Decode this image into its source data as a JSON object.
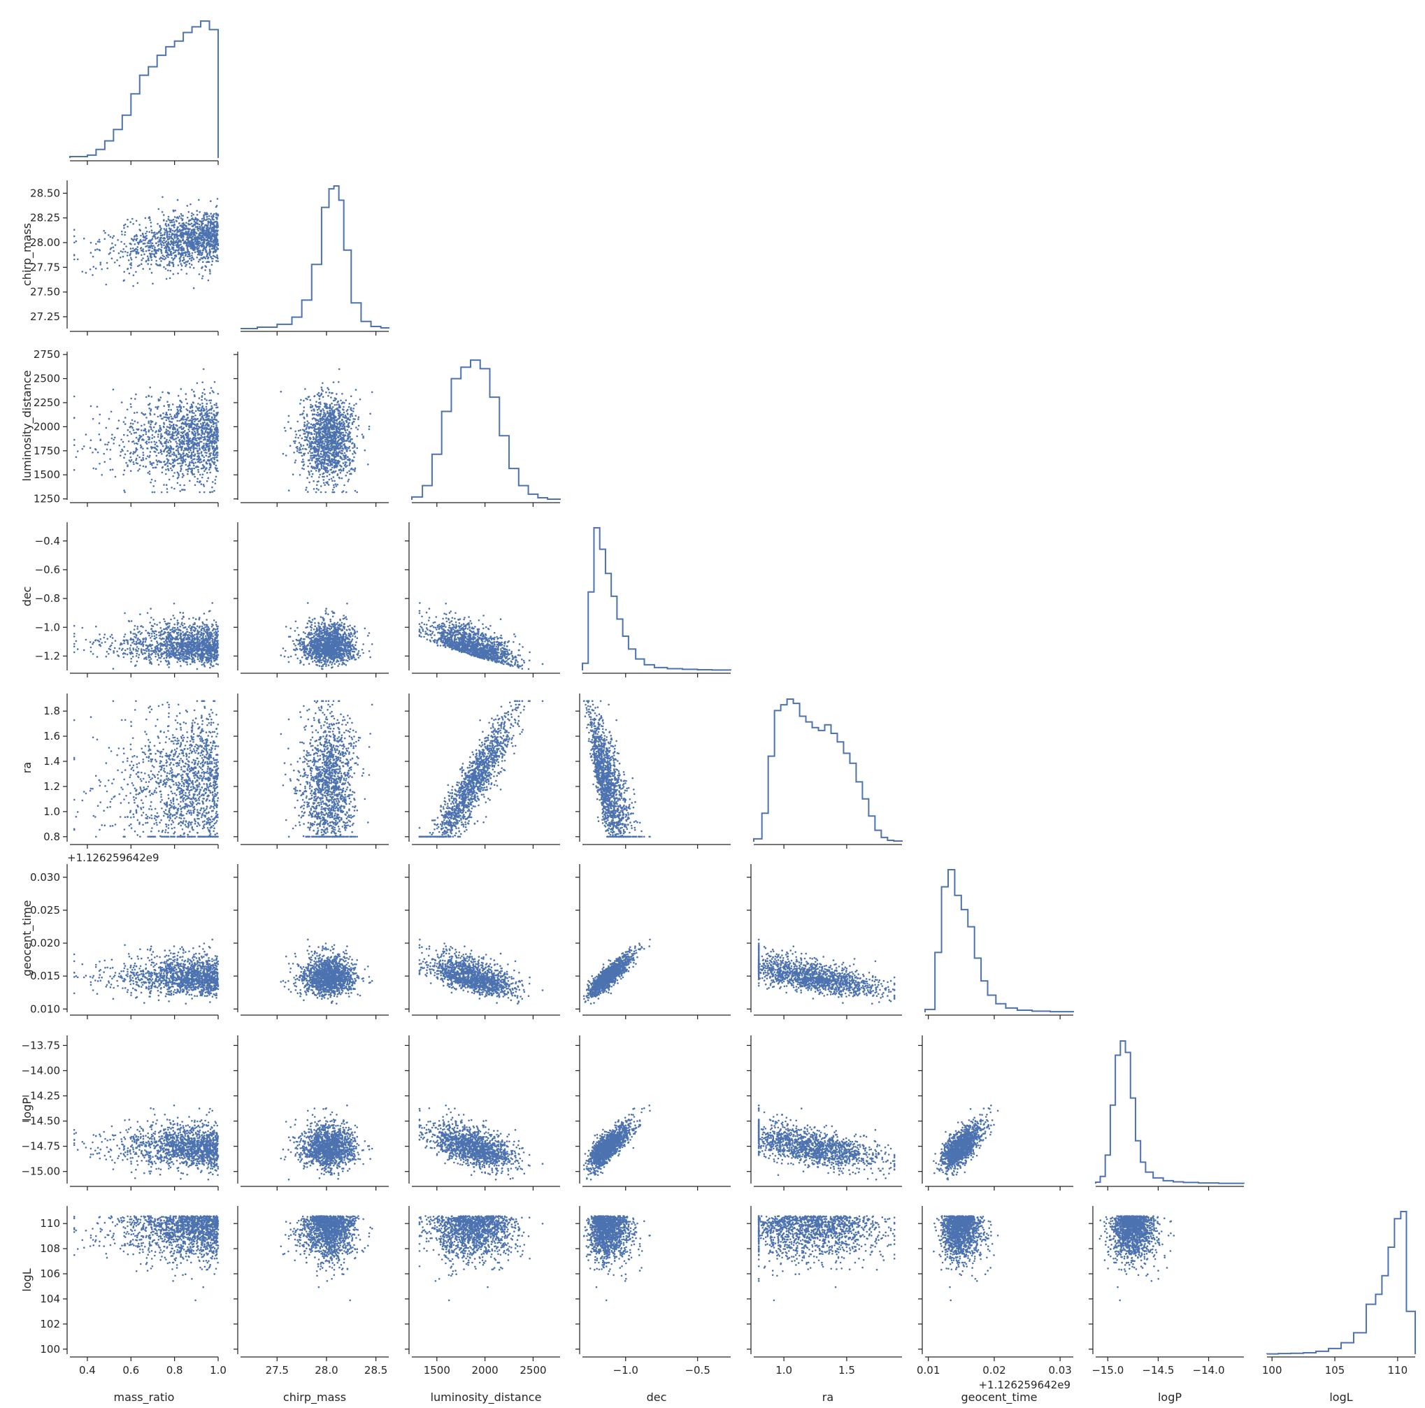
{
  "chart_data": {
    "type": "scatter",
    "kind": "corner-pairplot",
    "color": "#4c72b0",
    "variables": [
      {
        "name": "mass_ratio",
        "range": [
          0.32,
          1.0
        ],
        "ticks": [
          0.4,
          0.6,
          0.8,
          1.0
        ],
        "tick_labels": [
          "0.4",
          "0.6",
          "0.8",
          "1.0"
        ]
      },
      {
        "name": "chirp_mass",
        "range": [
          27.13,
          28.63
        ],
        "ticks": [
          27.25,
          27.5,
          27.75,
          28.0,
          28.25,
          28.5
        ],
        "tick_labels_y": [
          "27.25",
          "27.50",
          "27.75",
          "28.00",
          "28.25",
          "28.50"
        ],
        "ticks_x": [
          27.5,
          28.0,
          28.5
        ],
        "tick_labels_x": [
          "27.5",
          "28.0",
          "28.5"
        ]
      },
      {
        "name": "luminosity_distance",
        "range": [
          1240,
          2780
        ],
        "ticks": [
          1250,
          1500,
          1750,
          2000,
          2250,
          2500,
          2750
        ],
        "tick_labels_y": [
          "1250",
          "1500",
          "1750",
          "2000",
          "2250",
          "2500",
          "2750"
        ],
        "ticks_x": [
          1500,
          2000,
          2500
        ],
        "tick_labels_x": [
          "1500",
          "2000",
          "2500"
        ]
      },
      {
        "name": "dec",
        "range": [
          -1.3,
          -0.27
        ],
        "ticks": [
          -1.2,
          -1.0,
          -0.8,
          -0.6,
          -0.4
        ],
        "tick_labels_y": [
          "−1.2",
          "−1.0",
          "−0.8",
          "−0.6",
          "−0.4"
        ],
        "ticks_x": [
          -1.0,
          -0.5
        ],
        "tick_labels_x": [
          "−1.0",
          "−0.5"
        ]
      },
      {
        "name": "ra",
        "range": [
          0.76,
          1.94
        ],
        "ticks": [
          0.8,
          1.0,
          1.2,
          1.4,
          1.6,
          1.8
        ],
        "tick_labels_y": [
          "0.8",
          "1.0",
          "1.2",
          "1.4",
          "1.6",
          "1.8"
        ],
        "ticks_x": [
          1.0,
          1.5
        ],
        "tick_labels_x": [
          "1.0",
          "1.5"
        ]
      },
      {
        "name": "geocent_time",
        "range": [
          0.0095,
          0.032
        ],
        "ticks": [
          0.01,
          0.015,
          0.02,
          0.025,
          0.03
        ],
        "tick_labels_y": [
          "0.010",
          "0.015",
          "0.020",
          "0.025",
          "0.030"
        ],
        "ticks_x": [
          0.01,
          0.02,
          0.03
        ],
        "tick_labels_x": [
          "0.01",
          "0.02",
          "0.03"
        ],
        "offset_text": "+1.126259642e9"
      },
      {
        "name": "logP",
        "range": [
          -15.12,
          -13.65
        ],
        "ticks": [
          -15.0,
          -14.75,
          -14.5,
          -14.25,
          -14.0,
          -13.75
        ],
        "tick_labels_y": [
          "−15.00",
          "−14.75",
          "−14.50",
          "−14.25",
          "−14.00",
          "−13.75"
        ],
        "ticks_x": [
          -15.0,
          -14.5,
          -14.0
        ],
        "tick_labels_x": [
          "−15.0",
          "−14.5",
          "−14.0"
        ]
      },
      {
        "name": "logL",
        "range": [
          99.6,
          111.4
        ],
        "ticks": [
          100,
          102,
          104,
          106,
          108,
          110
        ],
        "tick_labels_y": [
          "100",
          "102",
          "104",
          "106",
          "108",
          "110"
        ],
        "ticks_x": [
          100,
          105,
          110
        ],
        "tick_labels_x": [
          "100",
          "105",
          "110"
        ]
      }
    ],
    "histograms": {
      "mass_ratio": {
        "centers": [
          0.34,
          0.38,
          0.42,
          0.46,
          0.5,
          0.54,
          0.58,
          0.62,
          0.66,
          0.7,
          0.74,
          0.78,
          0.82,
          0.86,
          0.9,
          0.94,
          0.98
        ],
        "heights": [
          0.01,
          0.01,
          0.02,
          0.06,
          0.12,
          0.2,
          0.3,
          0.45,
          0.58,
          0.64,
          0.72,
          0.78,
          0.82,
          0.88,
          0.92,
          0.96,
          0.9
        ]
      },
      "chirp_mass": {
        "centers": [
          27.2,
          27.4,
          27.6,
          27.7,
          27.8,
          27.9,
          28.0,
          28.05,
          28.1,
          28.15,
          28.2,
          28.3,
          28.4,
          28.5,
          28.6
        ],
        "heights": [
          0.0,
          0.01,
          0.03,
          0.08,
          0.2,
          0.45,
          0.85,
          0.98,
          1.0,
          0.9,
          0.55,
          0.18,
          0.05,
          0.015,
          0.005
        ]
      },
      "luminosity_distance": {
        "centers": [
          1300,
          1400,
          1500,
          1600,
          1700,
          1800,
          1900,
          2000,
          2100,
          2200,
          2300,
          2400,
          2500,
          2600,
          2700
        ],
        "heights": [
          0.02,
          0.1,
          0.32,
          0.62,
          0.85,
          0.93,
          0.98,
          0.92,
          0.72,
          0.45,
          0.22,
          0.1,
          0.04,
          0.015,
          0.005
        ]
      },
      "dec": {
        "centers": [
          -1.28,
          -1.24,
          -1.2,
          -1.16,
          -1.12,
          -1.08,
          -1.04,
          -1.0,
          -0.96,
          -0.9,
          -0.84,
          -0.76,
          -0.66,
          -0.55,
          -0.45,
          -0.35
        ],
        "heights": [
          0.05,
          0.55,
          1.0,
          0.85,
          0.68,
          0.52,
          0.36,
          0.24,
          0.15,
          0.08,
          0.04,
          0.02,
          0.012,
          0.008,
          0.005,
          0.003
        ]
      },
      "ra": {
        "centers": [
          0.8,
          0.85,
          0.9,
          0.95,
          1.0,
          1.05,
          1.1,
          1.15,
          1.2,
          1.25,
          1.3,
          1.35,
          1.4,
          1.45,
          1.5,
          1.55,
          1.6,
          1.65,
          1.7,
          1.75,
          1.8,
          1.85,
          1.9
        ],
        "heights": [
          0.02,
          0.2,
          0.6,
          0.92,
          0.96,
          1.0,
          0.97,
          0.88,
          0.84,
          0.8,
          0.78,
          0.82,
          0.76,
          0.7,
          0.62,
          0.55,
          0.42,
          0.3,
          0.18,
          0.08,
          0.03,
          0.01,
          0.005
        ]
      },
      "geocent_time": {
        "centers": [
          0.0105,
          0.0115,
          0.0125,
          0.0135,
          0.0145,
          0.0155,
          0.0165,
          0.0175,
          0.0185,
          0.0195,
          0.021,
          0.0225,
          0.0245,
          0.027,
          0.03
        ],
        "heights": [
          0.02,
          0.42,
          0.88,
          1.0,
          0.82,
          0.72,
          0.6,
          0.38,
          0.22,
          0.12,
          0.06,
          0.03,
          0.015,
          0.008,
          0.004
        ]
      },
      "logP": {
        "centers": [
          -15.1,
          -15.05,
          -15.0,
          -14.95,
          -14.9,
          -14.85,
          -14.8,
          -14.75,
          -14.7,
          -14.65,
          -14.6,
          -14.5,
          -14.4,
          -14.3,
          -14.2,
          -14.0,
          -13.8
        ],
        "heights": [
          0.01,
          0.05,
          0.2,
          0.55,
          0.9,
          1.0,
          0.92,
          0.6,
          0.3,
          0.15,
          0.08,
          0.04,
          0.02,
          0.012,
          0.008,
          0.004,
          0.002
        ]
      },
      "logL": {
        "centers": [
          100,
          101,
          102,
          103,
          104,
          105,
          106,
          107,
          108,
          108.5,
          109,
          109.5,
          110,
          110.5,
          110.9
        ],
        "heights": [
          0.002,
          0.004,
          0.006,
          0.01,
          0.02,
          0.04,
          0.08,
          0.15,
          0.35,
          0.42,
          0.55,
          0.75,
          0.95,
          1.0,
          0.3
        ]
      }
    }
  }
}
